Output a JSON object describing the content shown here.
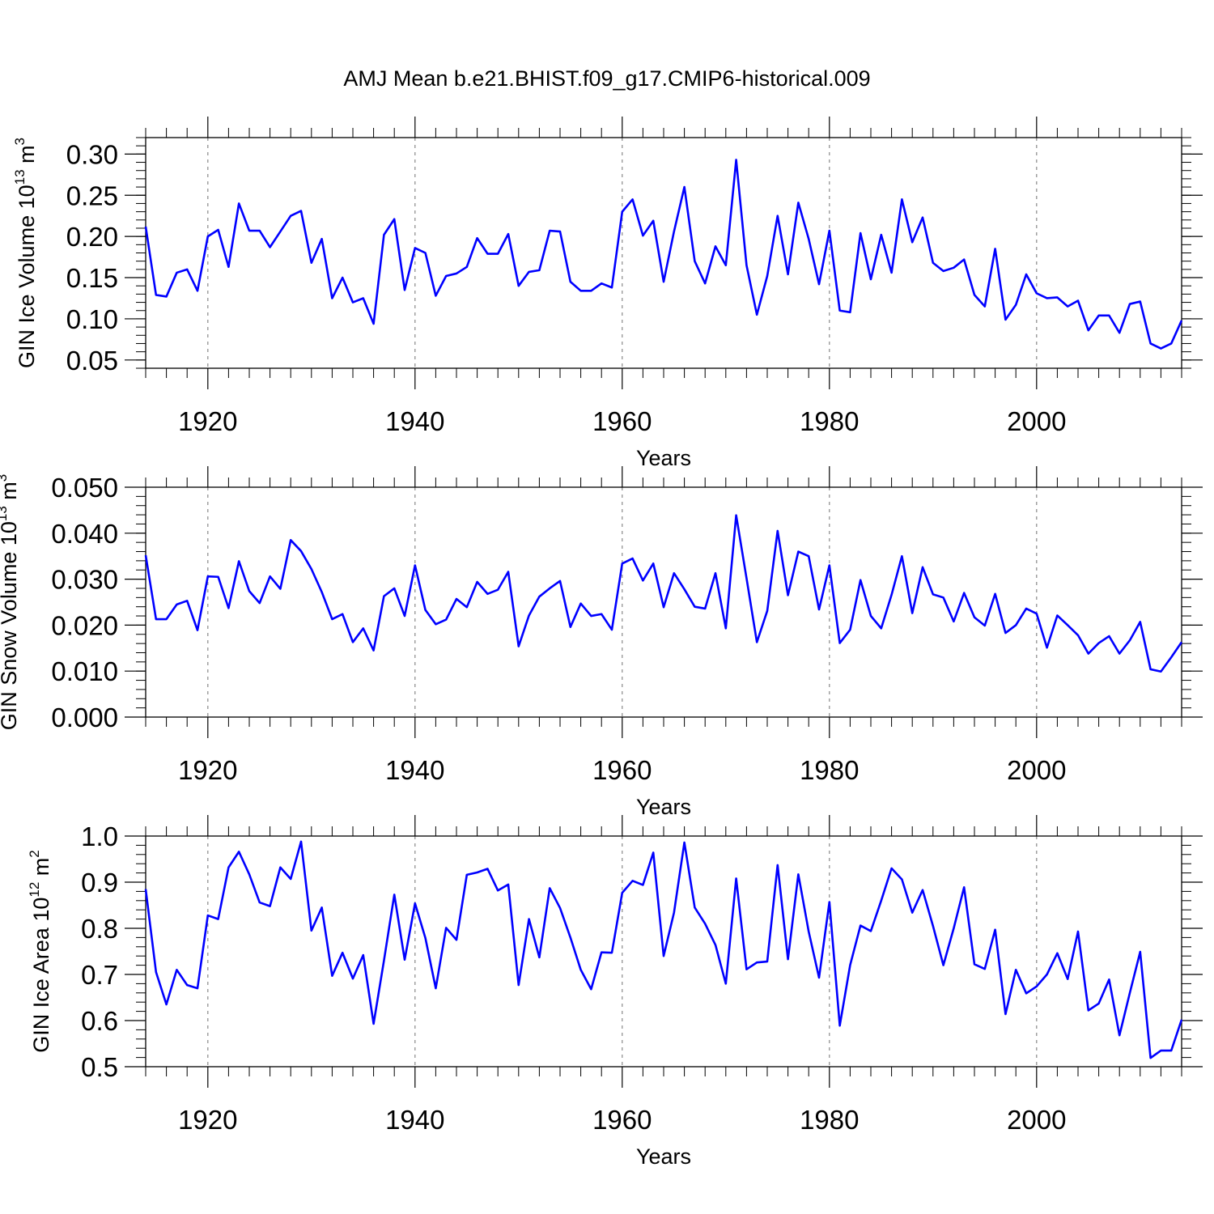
{
  "title": "AMJ Mean b.e21.BHIST.f09_g17.CMIP6-historical.009",
  "chart_data": [
    {
      "type": "line",
      "ylabel_main": "GIN Ice Volume 10",
      "ylabel_exp": "13",
      "ylabel_tail": " m",
      "ylabel_unit_exp": "3",
      "xlabel": "Years",
      "xlim": [
        1914,
        2014
      ],
      "ylim": [
        0.04,
        0.32
      ],
      "yticks": [
        0.05,
        0.1,
        0.15,
        0.2,
        0.25,
        0.3
      ],
      "ytick_labels": [
        "0.05",
        "0.10",
        "0.15",
        "0.20",
        "0.25",
        "0.30"
      ],
      "xticks": [
        1920,
        1940,
        1960,
        1980,
        2000
      ],
      "xtick_labels": [
        "1920",
        "1940",
        "1960",
        "1980",
        "2000"
      ],
      "line_color": "#0000ff",
      "x_start": 1914,
      "values": [
        0.212,
        0.129,
        0.127,
        0.156,
        0.16,
        0.134,
        0.2,
        0.208,
        0.163,
        0.24,
        0.207,
        0.207,
        0.187,
        0.206,
        0.225,
        0.231,
        0.168,
        0.197,
        0.125,
        0.15,
        0.12,
        0.125,
        0.094,
        0.202,
        0.221,
        0.135,
        0.186,
        0.18,
        0.128,
        0.152,
        0.155,
        0.163,
        0.198,
        0.179,
        0.179,
        0.203,
        0.14,
        0.157,
        0.159,
        0.207,
        0.206,
        0.145,
        0.134,
        0.134,
        0.143,
        0.138,
        0.23,
        0.245,
        0.201,
        0.219,
        0.145,
        0.206,
        0.26,
        0.17,
        0.143,
        0.188,
        0.165,
        0.293,
        0.165,
        0.105,
        0.152,
        0.225,
        0.154,
        0.241,
        0.197,
        0.142,
        0.207,
        0.11,
        0.108,
        0.204,
        0.148,
        0.202,
        0.156,
        0.245,
        0.193,
        0.223,
        0.168,
        0.158,
        0.162,
        0.172,
        0.129,
        0.115,
        0.185,
        0.099,
        0.117,
        0.154,
        0.131,
        0.125,
        0.126,
        0.115,
        0.122,
        0.086,
        0.104,
        0.104,
        0.083,
        0.118,
        0.121,
        0.07,
        0.064,
        0.07,
        0.098
      ]
    },
    {
      "type": "line",
      "ylabel_main": "GIN Snow Volume 10",
      "ylabel_exp": "13",
      "ylabel_tail": " m",
      "ylabel_unit_exp": "3",
      "xlabel": "Years",
      "xlim": [
        1914,
        2014
      ],
      "ylim": [
        0.0,
        0.05
      ],
      "yticks": [
        0.0,
        0.01,
        0.02,
        0.03,
        0.04,
        0.05
      ],
      "ytick_labels": [
        "0.000",
        "0.010",
        "0.020",
        "0.030",
        "0.040",
        "0.050"
      ],
      "xticks": [
        1920,
        1940,
        1960,
        1980,
        2000
      ],
      "xtick_labels": [
        "1920",
        "1940",
        "1960",
        "1980",
        "2000"
      ],
      "line_color": "#0000ff",
      "x_start": 1914,
      "values": [
        0.0352,
        0.0213,
        0.0213,
        0.0245,
        0.0253,
        0.0189,
        0.0306,
        0.0305,
        0.0237,
        0.0339,
        0.0274,
        0.0248,
        0.0306,
        0.0279,
        0.0385,
        0.0361,
        0.0322,
        0.0272,
        0.0213,
        0.0224,
        0.0163,
        0.0193,
        0.0145,
        0.0263,
        0.028,
        0.022,
        0.033,
        0.0233,
        0.0202,
        0.0212,
        0.0257,
        0.0239,
        0.0294,
        0.0268,
        0.0277,
        0.0316,
        0.0154,
        0.0221,
        0.0262,
        0.028,
        0.0296,
        0.0196,
        0.0247,
        0.022,
        0.0224,
        0.019,
        0.0334,
        0.0345,
        0.0297,
        0.0334,
        0.0239,
        0.0313,
        0.0278,
        0.024,
        0.0236,
        0.0313,
        0.0193,
        0.0439,
        0.0302,
        0.0163,
        0.0231,
        0.0405,
        0.0265,
        0.036,
        0.035,
        0.0234,
        0.033,
        0.0161,
        0.019,
        0.0298,
        0.022,
        0.0193,
        0.0266,
        0.035,
        0.0226,
        0.0326,
        0.0267,
        0.026,
        0.0208,
        0.027,
        0.0217,
        0.0199,
        0.0268,
        0.0183,
        0.02,
        0.0236,
        0.0225,
        0.0151,
        0.0221,
        0.02,
        0.0178,
        0.0138,
        0.0161,
        0.0176,
        0.0138,
        0.0167,
        0.0207,
        0.0104,
        0.0099,
        0.013,
        0.0163
      ]
    },
    {
      "type": "line",
      "ylabel_main": "GIN Ice Area 10",
      "ylabel_exp": "12",
      "ylabel_tail": " m",
      "ylabel_unit_exp": "2",
      "xlabel": "Years",
      "xlim": [
        1914,
        2014
      ],
      "ylim": [
        0.5,
        1.0
      ],
      "yticks": [
        0.5,
        0.6,
        0.7,
        0.8,
        0.9,
        1.0
      ],
      "ytick_labels": [
        "0.5",
        "0.6",
        "0.7",
        "0.8",
        "0.9",
        "1.0"
      ],
      "xticks": [
        1920,
        1940,
        1960,
        1980,
        2000
      ],
      "xtick_labels": [
        "1920",
        "1940",
        "1960",
        "1980",
        "2000"
      ],
      "line_color": "#0000ff",
      "x_start": 1914,
      "values": [
        0.885,
        0.705,
        0.635,
        0.71,
        0.677,
        0.67,
        0.828,
        0.82,
        0.932,
        0.966,
        0.917,
        0.856,
        0.848,
        0.932,
        0.907,
        0.988,
        0.795,
        0.845,
        0.697,
        0.747,
        0.691,
        0.742,
        0.593,
        0.73,
        0.873,
        0.732,
        0.854,
        0.779,
        0.67,
        0.801,
        0.775,
        0.916,
        0.921,
        0.929,
        0.882,
        0.895,
        0.677,
        0.82,
        0.737,
        0.887,
        0.844,
        0.78,
        0.71,
        0.668,
        0.748,
        0.747,
        0.877,
        0.903,
        0.894,
        0.964,
        0.74,
        0.834,
        0.986,
        0.845,
        0.81,
        0.764,
        0.68,
        0.908,
        0.711,
        0.726,
        0.728,
        0.937,
        0.733,
        0.917,
        0.793,
        0.693,
        0.857,
        0.589,
        0.72,
        0.806,
        0.794,
        0.86,
        0.93,
        0.906,
        0.834,
        0.883,
        0.805,
        0.72,
        0.8,
        0.889,
        0.722,
        0.712,
        0.797,
        0.614,
        0.71,
        0.659,
        0.674,
        0.7,
        0.746,
        0.69,
        0.793,
        0.622,
        0.637,
        0.689,
        0.568,
        0.66,
        0.749,
        0.519,
        0.535,
        0.535,
        0.602
      ]
    }
  ]
}
